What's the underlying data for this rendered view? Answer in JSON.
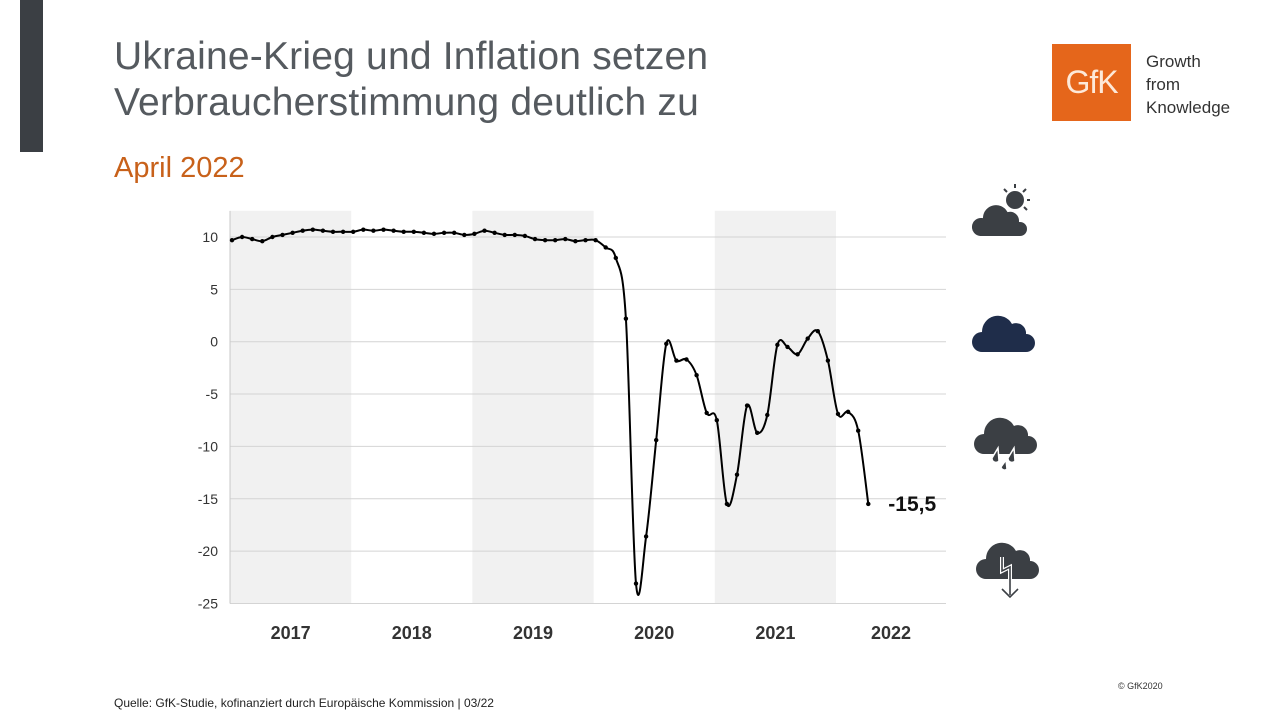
{
  "title_line1": "Ukraine-Krieg und Inflation setzen",
  "title_line2": "Verbraucherstimmung deutlich zu",
  "subtitle": "April 2022",
  "logo": {
    "text": "GfK",
    "tagline": [
      "Growth",
      "from",
      "Knowledge"
    ],
    "color": "#e5661b"
  },
  "source": "Quelle: GfK-Studie, kofinanziert durch Europäische Kommission | 03/22",
  "copyright": "© GfK2020",
  "icons": [
    "cloud-sun-icon",
    "cloud-icon",
    "cloud-rain-icon",
    "cloud-lightning-icon"
  ],
  "chart_data": {
    "type": "line",
    "x_start": "2017-01",
    "x_frequency": "monthly",
    "year_labels": [
      "2017",
      "2018",
      "2019",
      "2020",
      "2021",
      "2022"
    ],
    "ylim": [
      -25,
      12.5
    ],
    "yticks": [
      10,
      5,
      0,
      -5,
      -10,
      -15,
      -20,
      -25
    ],
    "grid": true,
    "alternating_year_shading": true,
    "last_value_label": "-15,5",
    "values": [
      9.7,
      10.0,
      9.8,
      9.6,
      10.0,
      10.2,
      10.4,
      10.6,
      10.7,
      10.6,
      10.5,
      10.5,
      10.5,
      10.7,
      10.6,
      10.7,
      10.6,
      10.5,
      10.5,
      10.4,
      10.3,
      10.4,
      10.4,
      10.2,
      10.3,
      10.6,
      10.4,
      10.2,
      10.2,
      10.1,
      9.8,
      9.7,
      9.7,
      9.8,
      9.6,
      9.7,
      9.7,
      9.0,
      8.0,
      2.2,
      -23.1,
      -18.6,
      -9.4,
      -0.2,
      -1.8,
      -1.7,
      -3.2,
      -6.8,
      -7.5,
      -15.5,
      -12.7,
      -6.1,
      -8.7,
      -7.0,
      -0.3,
      -0.5,
      -1.2,
      0.3,
      1.0,
      -1.8,
      -6.9,
      -6.7,
      -8.5,
      -15.5
    ],
    "line_color": "#000000",
    "shade_color": "#f1f1f1"
  }
}
